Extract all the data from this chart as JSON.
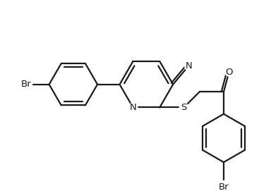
{
  "bg_color": "#ffffff",
  "line_color": "#1a1a1a",
  "bond_width": 1.6,
  "font_size": 9.5,
  "fig_width": 3.67,
  "fig_height": 2.71,
  "dpi": 100,
  "atoms": {
    "N_label": "N",
    "S_label": "S",
    "O_label": "O",
    "Br1_label": "Br",
    "Br2_label": "Br",
    "N_CN_label": "N"
  }
}
